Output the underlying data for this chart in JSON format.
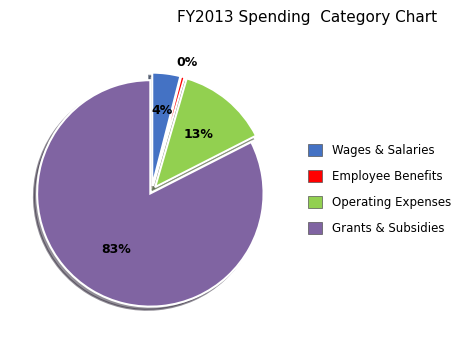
{
  "title": "FY2013 Spending  Category Chart",
  "labels": [
    "Wages & Salaries",
    "Employee Benefits",
    "Operating Expenses",
    "Grants & Subsidies"
  ],
  "values": [
    4,
    0.5,
    13,
    82.5
  ],
  "display_pcts": [
    "4%",
    "0%",
    "13%",
    "83%"
  ],
  "colors": [
    "#4472C4",
    "#FF0000",
    "#92D050",
    "#8064A2"
  ],
  "legend_labels": [
    "Wages & Salaries",
    "Employee Benefits",
    "Operating Expenses",
    "Grants & Subsidies"
  ],
  "legend_colors": [
    "#4472C4",
    "#FF0000",
    "#92D050",
    "#8064A2"
  ],
  "background_color": "#FFFFFF",
  "title_fontsize": 11,
  "startangle": 90,
  "explode": [
    0.05,
    0.05,
    0.05,
    0.02
  ]
}
